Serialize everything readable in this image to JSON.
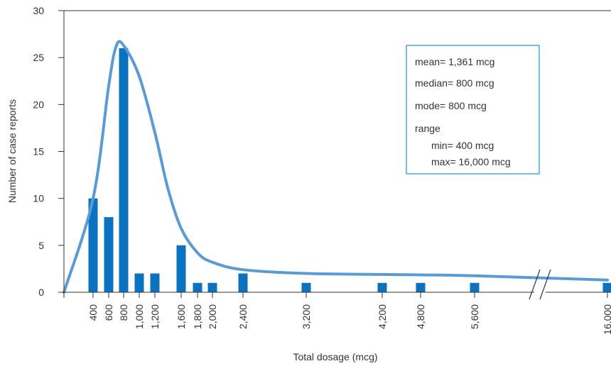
{
  "colors": {
    "bar": "#0b72bf",
    "curve": "#5b9bd5",
    "axis": "#333333",
    "box_border": "#1f8fd0"
  },
  "chart_data": {
    "type": "bar",
    "title": "",
    "xlabel": "Total dosage (mcg)",
    "ylabel": "Number of case reports",
    "ylim": [
      0,
      30
    ],
    "yticks": [
      "0",
      "5",
      "10",
      "15",
      "20",
      "25",
      "30"
    ],
    "categories": [
      "400",
      "600",
      "800",
      "1,000",
      "1,200",
      "1,600",
      "1,800",
      "2,000",
      "2,400",
      "3,200",
      "4,200",
      "4,800",
      "5,600",
      "16,000"
    ],
    "values": [
      10,
      8,
      26,
      2,
      2,
      5,
      1,
      1,
      2,
      1,
      1,
      1,
      1,
      1
    ],
    "axis_break": "between 5,600 and 16,000",
    "fitted_curve": [
      {
        "x": 200,
        "y": 0
      },
      {
        "x": 400,
        "y": 10
      },
      {
        "x": 600,
        "y": 22
      },
      {
        "x": 700,
        "y": 26.2
      },
      {
        "x": 800,
        "y": 26.3
      },
      {
        "x": 1000,
        "y": 23
      },
      {
        "x": 1200,
        "y": 17
      },
      {
        "x": 1400,
        "y": 11
      },
      {
        "x": 1600,
        "y": 6.8
      },
      {
        "x": 1800,
        "y": 4.2
      },
      {
        "x": 2000,
        "y": 3.2
      },
      {
        "x": 2400,
        "y": 2.4
      },
      {
        "x": 3200,
        "y": 2.0
      },
      {
        "x": 4200,
        "y": 1.9
      },
      {
        "x": 4800,
        "y": 1.85
      },
      {
        "x": 5600,
        "y": 1.75
      },
      {
        "x": 16000,
        "y": 1.3
      }
    ]
  },
  "stats_box": {
    "mean": "mean= 1,361 mcg",
    "median": "median= 800 mcg",
    "mode": "mode= 800 mcg",
    "range": "range",
    "min": "min= 400 mcg",
    "max": "max= 16,000 mcg"
  }
}
